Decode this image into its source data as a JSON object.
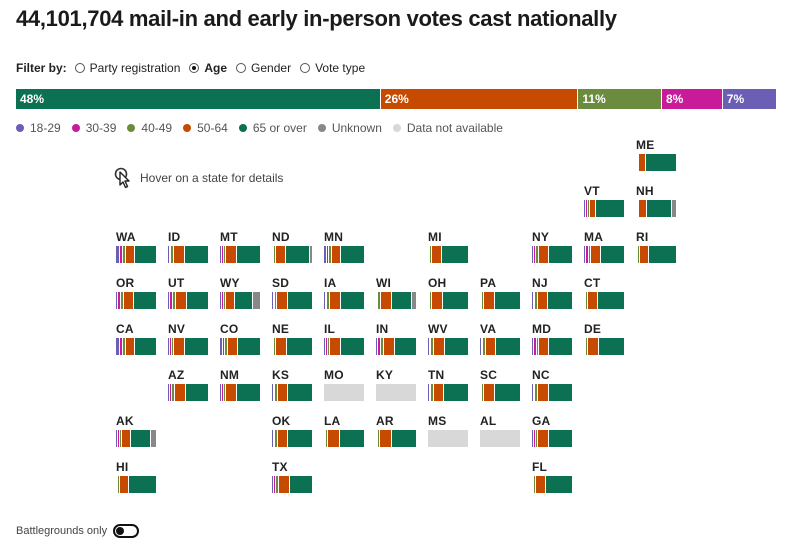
{
  "title": "44,101,704 mail-in and early in-person votes cast nationally",
  "filter": {
    "label": "Filter by:",
    "options": [
      {
        "label": "Party registration",
        "selected": false
      },
      {
        "label": "Age",
        "selected": true
      },
      {
        "label": "Gender",
        "selected": false
      },
      {
        "label": "Vote type",
        "selected": false
      }
    ]
  },
  "colors": {
    "18-29": "#6b5fb5",
    "30-39": "#c71b9a",
    "40-49": "#6b8c3e",
    "50-64": "#c64a00",
    "65 or over": "#0c7053",
    "Unknown": "#888888",
    "Data not available": "#d8d8d8"
  },
  "national": [
    {
      "group": "65 or over",
      "pct": 48,
      "label": "48%"
    },
    {
      "group": "50-64",
      "pct": 26,
      "label": "26%"
    },
    {
      "group": "40-49",
      "pct": 11,
      "label": "11%"
    },
    {
      "group": "30-39",
      "pct": 8,
      "label": "8%"
    },
    {
      "group": "18-29",
      "pct": 7,
      "label": "7%"
    }
  ],
  "legend": [
    "18-29",
    "30-39",
    "40-49",
    "50-64",
    "65 or over",
    "Unknown",
    "Data not available"
  ],
  "hover_hint": "Hover on a state for details",
  "toggle_label": "Battlegrounds only",
  "states": [
    {
      "abbr": "ME",
      "col": 12,
      "row": 0,
      "mix": [
        2,
        2,
        2,
        17,
        77,
        0
      ]
    },
    {
      "abbr": "VT",
      "col": 11,
      "row": 1,
      "mix": [
        5,
        4,
        5,
        17,
        69,
        0
      ]
    },
    {
      "abbr": "NH",
      "col": 12,
      "row": 1,
      "mix": [
        2,
        2,
        3,
        19,
        64,
        10
      ]
    },
    {
      "abbr": "WA",
      "col": 2,
      "row": 2,
      "mix": [
        9,
        8,
        9,
        22,
        52,
        0
      ]
    },
    {
      "abbr": "ID",
      "col": 3,
      "row": 2,
      "mix": [
        4,
        4,
        7,
        27,
        58,
        0
      ]
    },
    {
      "abbr": "MT",
      "col": 4,
      "row": 2,
      "mix": [
        5,
        5,
        6,
        27,
        57,
        0
      ]
    },
    {
      "abbr": "ND",
      "col": 5,
      "row": 2,
      "mix": [
        3,
        3,
        5,
        24,
        60,
        5
      ]
    },
    {
      "abbr": "MN",
      "col": 6,
      "row": 2,
      "mix": [
        7,
        6,
        6,
        23,
        58,
        0
      ]
    },
    {
      "abbr": "MI",
      "col": 8,
      "row": 2,
      "mix": [
        3,
        3,
        5,
        25,
        64,
        0
      ]
    },
    {
      "abbr": "NY",
      "col": 10,
      "row": 2,
      "mix": [
        5,
        6,
        6,
        26,
        57,
        0
      ]
    },
    {
      "abbr": "MA",
      "col": 11,
      "row": 2,
      "mix": [
        6,
        6,
        6,
        25,
        57,
        0
      ]
    },
    {
      "abbr": "RI",
      "col": 12,
      "row": 2,
      "mix": [
        2,
        2,
        5,
        24,
        67,
        0
      ]
    },
    {
      "abbr": "OR",
      "col": 2,
      "row": 3,
      "mix": [
        6,
        7,
        7,
        26,
        54,
        0
      ]
    },
    {
      "abbr": "UT",
      "col": 3,
      "row": 3,
      "mix": [
        6,
        7,
        8,
        27,
        52,
        0
      ]
    },
    {
      "abbr": "WY",
      "col": 4,
      "row": 3,
      "mix": [
        5,
        5,
        5,
        22,
        45,
        18
      ]
    },
    {
      "abbr": "SD",
      "col": 5,
      "row": 3,
      "mix": [
        4,
        4,
        5,
        27,
        60,
        0
      ]
    },
    {
      "abbr": "IA",
      "col": 6,
      "row": 3,
      "mix": [
        4,
        4,
        6,
        28,
        58,
        0
      ]
    },
    {
      "abbr": "WI",
      "col": 7,
      "row": 3,
      "mix": [
        3,
        3,
        6,
        27,
        51,
        10
      ]
    },
    {
      "abbr": "OH",
      "col": 8,
      "row": 3,
      "mix": [
        3,
        3,
        5,
        26,
        63,
        0
      ]
    },
    {
      "abbr": "PA",
      "col": 9,
      "row": 3,
      "mix": [
        3,
        3,
        5,
        26,
        63,
        0
      ]
    },
    {
      "abbr": "NJ",
      "col": 10,
      "row": 3,
      "mix": [
        4,
        4,
        6,
        27,
        59,
        0
      ]
    },
    {
      "abbr": "CT",
      "col": 11,
      "row": 3,
      "mix": [
        2,
        2,
        4,
        27,
        65,
        0
      ]
    },
    {
      "abbr": "CA",
      "col": 2,
      "row": 4,
      "mix": [
        9,
        8,
        9,
        22,
        52,
        0
      ]
    },
    {
      "abbr": "NV",
      "col": 3,
      "row": 4,
      "mix": [
        5,
        5,
        6,
        27,
        57,
        0
      ]
    },
    {
      "abbr": "CO",
      "col": 4,
      "row": 4,
      "mix": [
        7,
        6,
        7,
        26,
        54,
        0
      ]
    },
    {
      "abbr": "NE",
      "col": 5,
      "row": 4,
      "mix": [
        2,
        3,
        4,
        29,
        62,
        0
      ]
    },
    {
      "abbr": "IL",
      "col": 6,
      "row": 4,
      "mix": [
        4,
        5,
        6,
        27,
        58,
        0
      ]
    },
    {
      "abbr": "IN",
      "col": 7,
      "row": 4,
      "mix": [
        6,
        6,
        7,
        28,
        53,
        0
      ]
    },
    {
      "abbr": "WV",
      "col": 8,
      "row": 4,
      "mix": [
        4,
        4,
        7,
        28,
        57,
        0
      ]
    },
    {
      "abbr": "VA",
      "col": 9,
      "row": 4,
      "mix": [
        4,
        4,
        6,
        27,
        59,
        0
      ]
    },
    {
      "abbr": "MD",
      "col": 10,
      "row": 4,
      "mix": [
        6,
        6,
        6,
        24,
        58,
        0
      ]
    },
    {
      "abbr": "DE",
      "col": 11,
      "row": 4,
      "mix": [
        3,
        3,
        5,
        27,
        62,
        0
      ]
    },
    {
      "abbr": "AZ",
      "col": 3,
      "row": 5,
      "mix": [
        6,
        5,
        6,
        27,
        56,
        0
      ]
    },
    {
      "abbr": "NM",
      "col": 4,
      "row": 5,
      "mix": [
        5,
        5,
        6,
        27,
        57,
        0
      ]
    },
    {
      "abbr": "KS",
      "col": 5,
      "row": 5,
      "mix": [
        4,
        4,
        6,
        27,
        59,
        0
      ]
    },
    {
      "abbr": "MO",
      "col": 6,
      "row": 5,
      "mix": []
    },
    {
      "abbr": "KY",
      "col": 7,
      "row": 5,
      "mix": []
    },
    {
      "abbr": "TN",
      "col": 8,
      "row": 5,
      "mix": [
        4,
        4,
        6,
        27,
        59,
        0
      ]
    },
    {
      "abbr": "SC",
      "col": 9,
      "row": 5,
      "mix": [
        3,
        3,
        5,
        27,
        62,
        0
      ]
    },
    {
      "abbr": "NC",
      "col": 10,
      "row": 5,
      "mix": [
        4,
        4,
        6,
        29,
        57,
        0
      ]
    },
    {
      "abbr": "AK",
      "col": 2,
      "row": 6,
      "mix": [
        5,
        5,
        6,
        21,
        50,
        13
      ]
    },
    {
      "abbr": "OK",
      "col": 5,
      "row": 6,
      "mix": [
        4,
        4,
        6,
        27,
        59,
        0
      ]
    },
    {
      "abbr": "LA",
      "col": 6,
      "row": 6,
      "mix": [
        3,
        3,
        5,
        29,
        60,
        0
      ]
    },
    {
      "abbr": "AR",
      "col": 7,
      "row": 6,
      "mix": [
        3,
        3,
        5,
        29,
        60,
        0
      ]
    },
    {
      "abbr": "MS",
      "col": 8,
      "row": 6,
      "mix": []
    },
    {
      "abbr": "AL",
      "col": 9,
      "row": 6,
      "mix": []
    },
    {
      "abbr": "GA",
      "col": 10,
      "row": 6,
      "mix": [
        5,
        5,
        6,
        26,
        58,
        0
      ]
    },
    {
      "abbr": "HI",
      "col": 2,
      "row": 7,
      "mix": [
        3,
        3,
        5,
        22,
        67,
        0
      ]
    },
    {
      "abbr": "TX",
      "col": 5,
      "row": 7,
      "mix": [
        6,
        5,
        6,
        28,
        55,
        0
      ]
    },
    {
      "abbr": "FL",
      "col": 10,
      "row": 7,
      "mix": [
        3,
        3,
        5,
        24,
        65,
        0
      ]
    }
  ]
}
